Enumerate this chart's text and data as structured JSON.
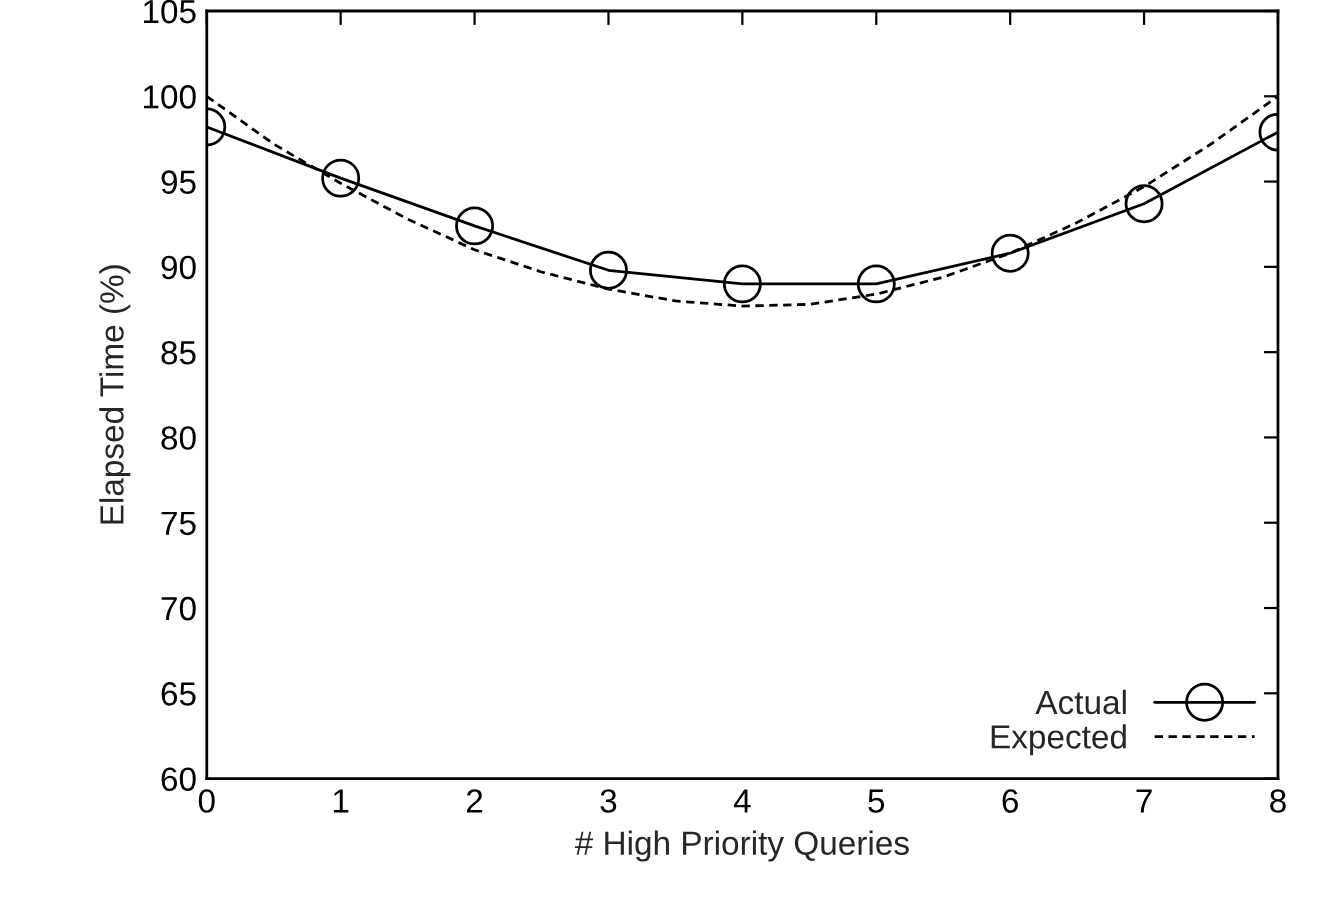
{
  "chart_data": {
    "type": "line",
    "xlabel": "# High Priority Queries",
    "ylabel": "Elapsed Time (%)",
    "xlim": [
      0,
      8
    ],
    "xticks": [
      0,
      1,
      2,
      3,
      4,
      5,
      6,
      7,
      8
    ],
    "ylim": [
      60,
      105
    ],
    "yticks": [
      60,
      65,
      70,
      75,
      80,
      85,
      90,
      95,
      100,
      105
    ],
    "grid": false,
    "legend": "bottom right",
    "series": [
      {
        "name": "Actual",
        "color": "#000000",
        "marker": "circle",
        "line_style": "solid",
        "x": [
          0,
          1,
          2,
          3,
          4,
          5,
          6,
          7,
          8
        ],
        "values": [
          98.2,
          95.2,
          92.4,
          89.8,
          89.0,
          89.0,
          90.8,
          93.7,
          97.9
        ]
      },
      {
        "name": "Expected",
        "color": "#000000",
        "marker": "none",
        "line_style": "dashed",
        "x": [
          0,
          0.5,
          1,
          1.5,
          2,
          2.5,
          3,
          3.5,
          4,
          4.5,
          5,
          5.5,
          6,
          6.5,
          7,
          7.5,
          8
        ],
        "values": [
          100,
          97.2,
          94.9,
          92.8,
          91.0,
          89.7,
          88.7,
          88.0,
          87.7,
          87.8,
          88.4,
          89.4,
          90.8,
          92.6,
          94.7,
          97.2,
          100
        ]
      }
    ]
  }
}
